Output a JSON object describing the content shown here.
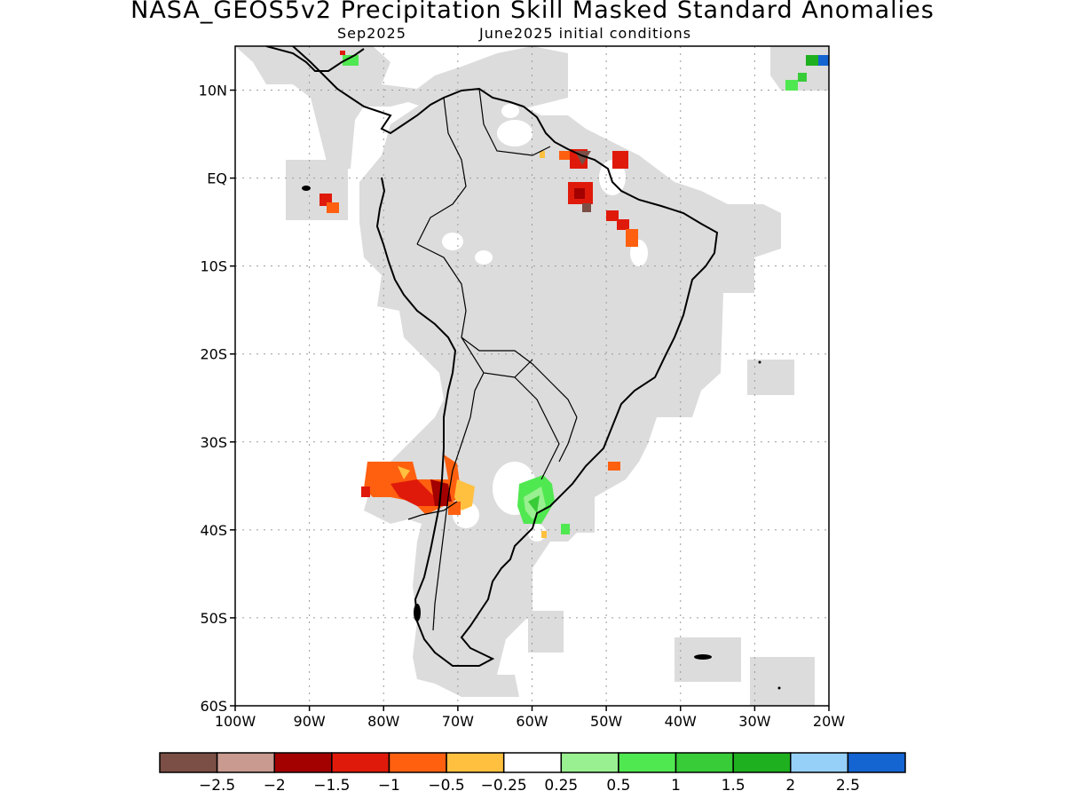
{
  "title": "NASA_GEOS5v2 Precipitation Skill Masked Standard Anomalies",
  "subtitle": {
    "target": "Sep2025",
    "initial": "June2025 initial conditions"
  },
  "map": {
    "lon_range": [
      -100,
      -20
    ],
    "lat_range": [
      -60,
      15
    ],
    "lat_ticks": [
      {
        "value": 10,
        "label": "10N"
      },
      {
        "value": 0,
        "label": "EQ"
      },
      {
        "value": -10,
        "label": "10S"
      },
      {
        "value": -20,
        "label": "20S"
      },
      {
        "value": -30,
        "label": "30S"
      },
      {
        "value": -40,
        "label": "40S"
      },
      {
        "value": -50,
        "label": "50S"
      },
      {
        "value": -60,
        "label": "60S"
      }
    ],
    "lon_ticks": [
      {
        "value": -100,
        "label": "100W"
      },
      {
        "value": -90,
        "label": "90W"
      },
      {
        "value": -80,
        "label": "80W"
      },
      {
        "value": -70,
        "label": "70W"
      },
      {
        "value": -60,
        "label": "60W"
      },
      {
        "value": -50,
        "label": "50W"
      },
      {
        "value": -40,
        "label": "40W"
      },
      {
        "value": -30,
        "label": "30W"
      },
      {
        "value": -20,
        "label": "20W"
      }
    ],
    "colors": {
      "mask": "#dcdcdc",
      "coast": "#000000",
      "grid": "#9a9a9a"
    }
  },
  "colorbar": {
    "colors": [
      "#7b4f45",
      "#c89a90",
      "#a30000",
      "#e01a0a",
      "#ff6010",
      "#ffc040",
      "#ffffff",
      "#99f090",
      "#50e850",
      "#38cc38",
      "#1fb01f",
      "#96d0f8",
      "#1464d2"
    ],
    "labels": [
      "-2.5",
      "-2",
      "-1.5",
      "-1",
      "-0.5",
      "-0.25",
      "0.25",
      "0.5",
      "1",
      "1.5",
      "2",
      "2.5"
    ]
  }
}
